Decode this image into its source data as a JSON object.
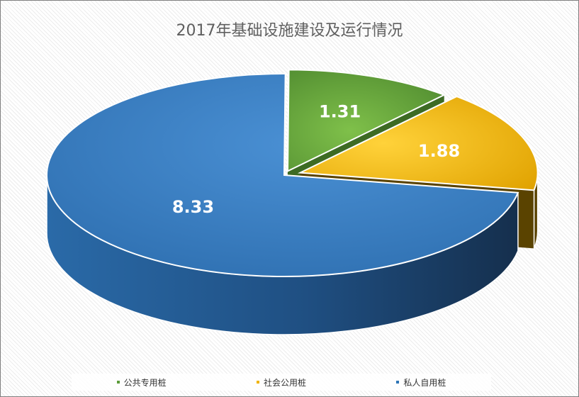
{
  "chart_data": {
    "type": "pie",
    "title": "2017年基础设施建设及运行情况",
    "categories": [
      "公共专用桩",
      "社会公用桩",
      "私人自用桩"
    ],
    "values": [
      1.31,
      1.88,
      8.33
    ],
    "data_labels": [
      "1.31",
      "1.88",
      "8.33"
    ],
    "colors": [
      "#5b9b3a",
      "#f0b400",
      "#2e75b6"
    ],
    "legend_position": "bottom",
    "style": "3d-exploded"
  }
}
